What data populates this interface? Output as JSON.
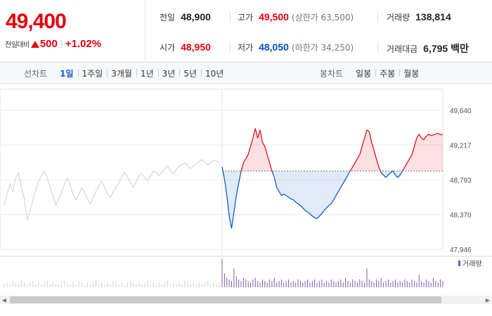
{
  "quote": {
    "price": "49,400",
    "change_label": "전일대비",
    "change_amount": "500",
    "change_percent": "+1.02%",
    "prev_close": {
      "label": "전일",
      "value": "48,900"
    },
    "open": {
      "label": "시가",
      "value": "48,950"
    },
    "high": {
      "label": "고가",
      "value": "49,500",
      "sub": "(상한가 63,500)"
    },
    "low": {
      "label": "저가",
      "value": "48,050",
      "sub": "(하한가 34,250)"
    },
    "volume": {
      "label": "거래량",
      "value": "138,814"
    },
    "trade_value": {
      "label": "거래대금",
      "value": "6,795 백만"
    }
  },
  "line_chart_tabs": {
    "heading": "선차트",
    "items": [
      "1일",
      "1주일",
      "3개월",
      "1년",
      "3년",
      "5년",
      "10년"
    ],
    "active_index": 0
  },
  "candle_chart_tabs": {
    "heading": "봉차트",
    "items": [
      "일봉",
      "주봉",
      "월봉"
    ]
  },
  "colors": {
    "up": "#e4000f",
    "down": "#0051c7",
    "prev_day": "#cfcfcf",
    "volume": "#7c5bb0"
  },
  "chart_data": {
    "type": "line",
    "title": "",
    "ylim": [
      47946,
      49640
    ],
    "y_ticks": [
      "49,640",
      "49,217",
      "48,793",
      "48,370",
      "47,946"
    ],
    "baseline": 48900,
    "volume_legend": "거래량",
    "series": [
      {
        "role": "previous-day",
        "values": [
          48480,
          48620,
          48740,
          48650,
          48820,
          48880,
          48700,
          48560,
          48300,
          48420,
          48540,
          48670,
          48770,
          48840,
          48900,
          48820,
          48700,
          48600,
          48490,
          48560,
          48640,
          48740,
          48810,
          48730,
          48620,
          48550,
          48610,
          48690,
          48640,
          48560,
          48500,
          48570,
          48650,
          48720,
          48780,
          48700,
          48620,
          48580,
          48640,
          48700,
          48760,
          48830,
          48880,
          48820,
          48760,
          48700,
          48770,
          48840,
          48870,
          48820,
          48780,
          48840,
          48900,
          48880,
          48840,
          48880,
          48930,
          48960,
          48900,
          48870,
          48920,
          48960,
          48980,
          49000,
          48960,
          48930,
          48960,
          48990,
          49020,
          49040,
          49000,
          48970,
          49000,
          49030,
          49020,
          49000
        ]
      },
      {
        "role": "today",
        "values": [
          48950,
          48800,
          48600,
          48350,
          48200,
          48400,
          48600,
          48750,
          48900,
          49000,
          49050,
          49100,
          49200,
          49300,
          49420,
          49300,
          49400,
          49250,
          49200,
          49100,
          49000,
          48900,
          48820,
          48700,
          48650,
          48600,
          48620,
          48600,
          48580,
          48560,
          48550,
          48520,
          48500,
          48480,
          48450,
          48420,
          48400,
          48380,
          48350,
          48330,
          48320,
          48350,
          48380,
          48420,
          48450,
          48480,
          48500,
          48550,
          48600,
          48650,
          48700,
          48750,
          48800,
          48850,
          48900,
          48950,
          49000,
          49050,
          49100,
          49200,
          49300,
          49400,
          49380,
          49250,
          49150,
          49050,
          48950,
          48880,
          48850,
          48820,
          48850,
          48880,
          48900,
          48850,
          48820,
          48850,
          48900,
          48950,
          49000,
          49050,
          49100,
          49200,
          49300,
          49350,
          49300,
          49280,
          49320,
          49350,
          49330,
          49340,
          49350,
          49360,
          49340,
          49350
        ]
      }
    ],
    "volume": {
      "previous_day": [
        2,
        3,
        2,
        4,
        3,
        2,
        5,
        3,
        2,
        3,
        4,
        2,
        3,
        2,
        3,
        4,
        2,
        3,
        2,
        2,
        3,
        4,
        3,
        2,
        3,
        2,
        4,
        3,
        2,
        3,
        2,
        3,
        4,
        2,
        3,
        2,
        3,
        2,
        4,
        3,
        2,
        3,
        2,
        3,
        4,
        3,
        2,
        3,
        2,
        3,
        4,
        2,
        3,
        2,
        3,
        2,
        3,
        4,
        2,
        3,
        2,
        3,
        2,
        4,
        3,
        2,
        3,
        2,
        3,
        2,
        3,
        4,
        2,
        3,
        2,
        3
      ],
      "today": [
        18,
        9,
        6,
        5,
        4,
        12,
        7,
        5,
        4,
        6,
        5,
        4,
        3,
        5,
        6,
        4,
        3,
        5,
        4,
        3,
        5,
        4,
        6,
        3,
        4,
        5,
        3,
        4,
        5,
        3,
        4,
        3,
        5,
        4,
        3,
        4,
        5,
        3,
        4,
        5,
        3,
        4,
        5,
        3,
        4,
        3,
        5,
        4,
        3,
        4,
        5,
        3,
        6,
        4,
        3,
        5,
        4,
        3,
        5,
        4,
        3,
        12,
        5,
        4,
        3,
        5,
        4,
        6,
        3,
        4,
        5,
        3,
        4,
        5,
        3,
        4,
        3,
        5,
        4,
        3,
        5,
        4,
        3,
        8,
        4,
        3,
        5,
        4,
        3,
        6,
        4,
        3,
        5,
        4
      ]
    }
  }
}
